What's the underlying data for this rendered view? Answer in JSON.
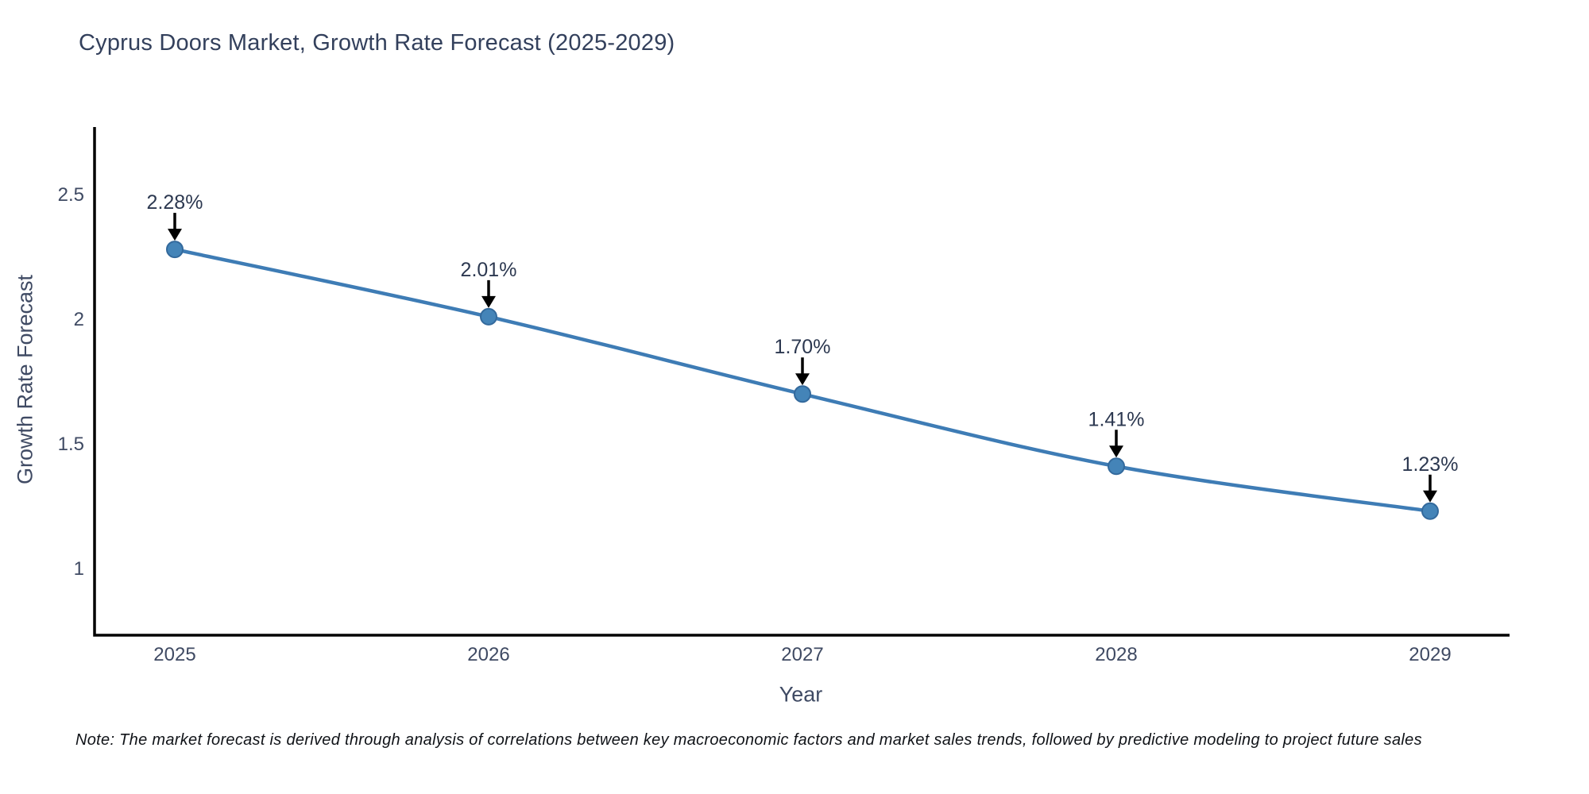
{
  "title": "Cyprus Doors Market, Growth Rate Forecast (2025-2029)",
  "note": "Note: The market forecast is derived through analysis of correlations between key macroeconomic factors and market sales trends, followed by predictive modeling to project future sales",
  "chart_data": {
    "type": "line",
    "title": "Cyprus Doors Market, Growth Rate Forecast (2025-2029)",
    "xlabel": "Year",
    "ylabel": "Growth Rate Forecast",
    "categories": [
      "2025",
      "2026",
      "2027",
      "2028",
      "2029"
    ],
    "values": [
      2.28,
      2.01,
      1.7,
      1.41,
      1.23
    ],
    "point_labels": [
      "2.28%",
      "2.01%",
      "1.70%",
      "1.41%",
      "1.23%"
    ],
    "yticks": [
      2.5,
      2,
      1.5,
      1
    ],
    "ylim": [
      0.77,
      2.77
    ],
    "grid": false,
    "legend": "none",
    "line_color": "#3e7cb5",
    "marker_color": "#4484b8",
    "marker_edge_color": "#33699c",
    "axis_color": "#000000",
    "annotation_arrow_color": "#000000"
  }
}
